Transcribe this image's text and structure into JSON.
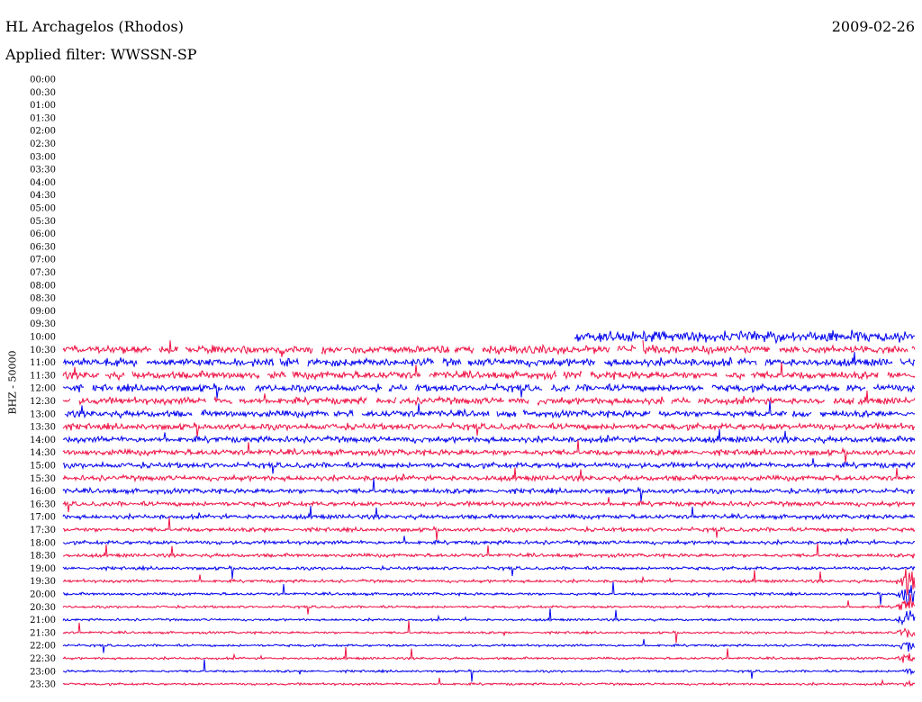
{
  "header": {
    "station": "HL Archagelos (Rhodos)",
    "filter": "Applied filter: WWSSN-SP",
    "date": "2009-02-26"
  },
  "chart_data": {
    "type": "line",
    "title": "HL Archagelos (Rhodos)",
    "subtitle": "Applied filter: WWSSN-SP",
    "date": "2009-02-26",
    "ylabel": "BHZ - 50000",
    "row_labels": [
      "00:00",
      "00:30",
      "01:00",
      "01:30",
      "02:00",
      "02:30",
      "03:00",
      "03:30",
      "04:00",
      "04:30",
      "05:00",
      "05:30",
      "06:00",
      "06:30",
      "07:00",
      "07:30",
      "08:00",
      "08:30",
      "09:00",
      "09:30",
      "10:00",
      "10:30",
      "11:00",
      "11:30",
      "12:00",
      "12:30",
      "13:00",
      "13:30",
      "14:00",
      "14:30",
      "15:00",
      "15:30",
      "16:00",
      "16:30",
      "17:00",
      "17:30",
      "18:00",
      "18:30",
      "19:00",
      "19:30",
      "20:00",
      "20:30",
      "21:00",
      "21:30",
      "22:00",
      "22:30",
      "23:00",
      "23:30"
    ],
    "trace_colors": [
      "#0000ee",
      "#ee1144"
    ],
    "first_trace_row": "10:00",
    "grid": false,
    "events": [
      {
        "row": "10:00",
        "segment_start_fraction": 0.6,
        "level": "high"
      },
      {
        "row": "19:30",
        "time_fraction": 0.92,
        "level": "large",
        "note": "large event with long coda"
      }
    ]
  },
  "colors": {
    "background": "#ffffff",
    "text": "#000000",
    "blue_trace": "#0000ee",
    "red_trace": "#ee1144"
  }
}
